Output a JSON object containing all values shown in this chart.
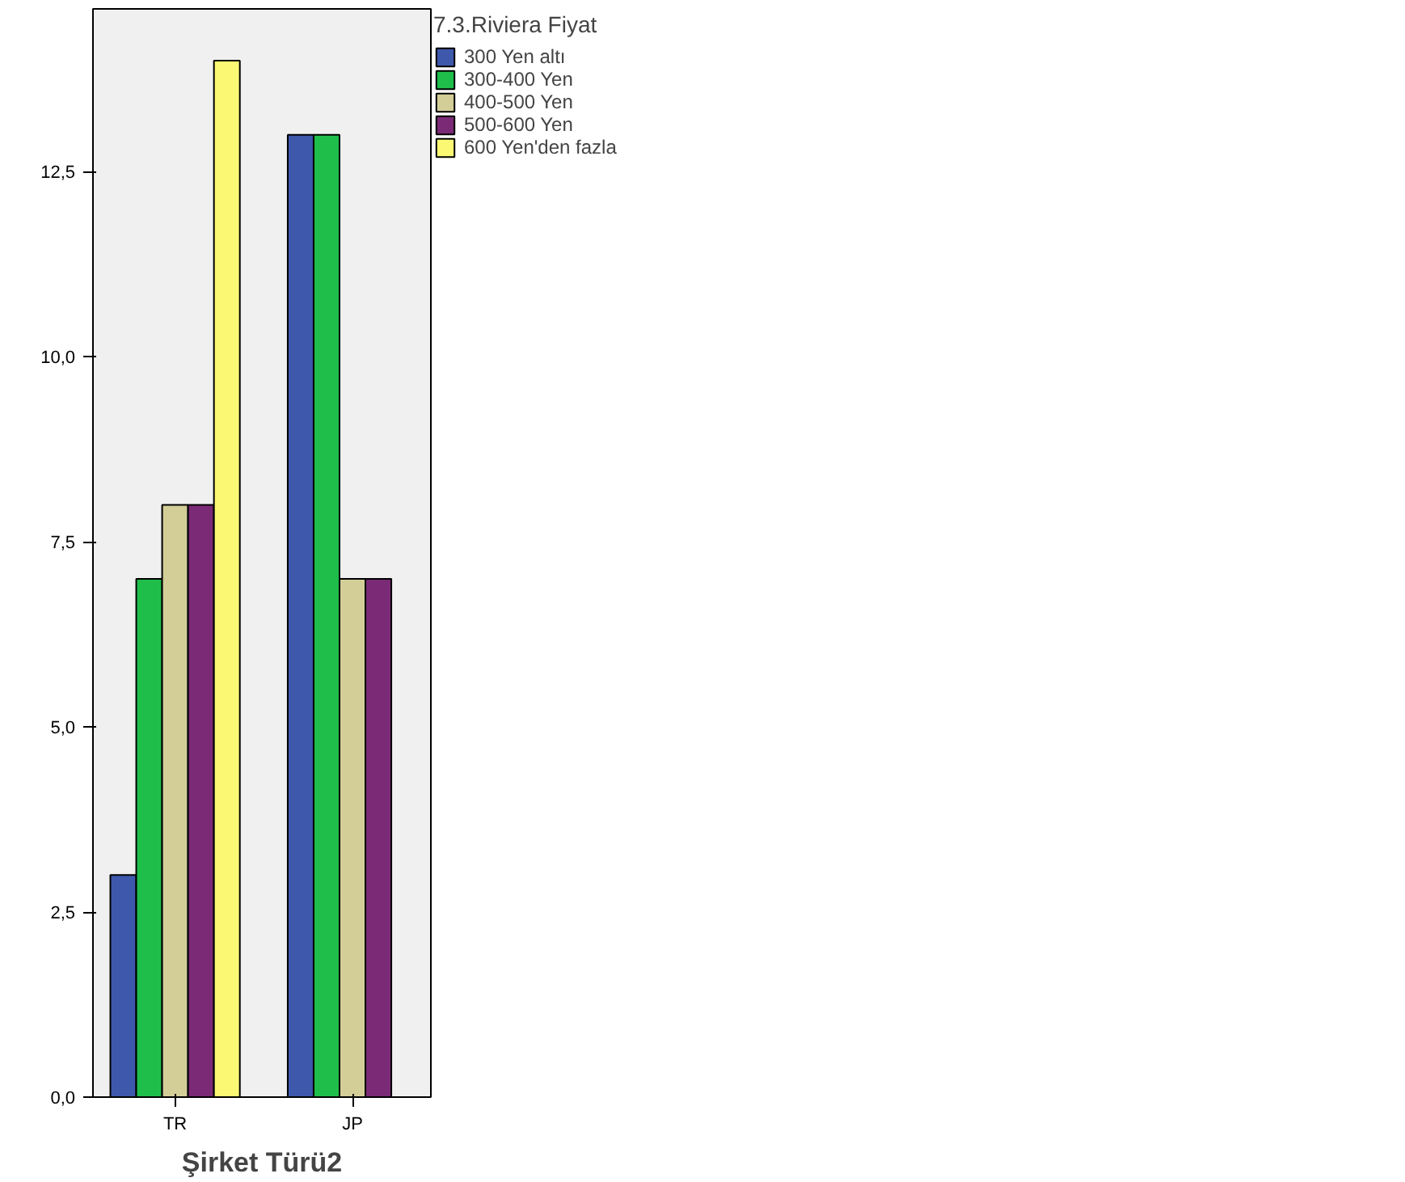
{
  "chart_data": {
    "type": "bar",
    "xlabel": "Şirket Türü2",
    "legend_title": "7.3.Riviera Fiyat",
    "categories": [
      "TR",
      "JP"
    ],
    "series": [
      {
        "name": "300 Yen altı",
        "color": "#3e58ac",
        "values": [
          3,
          13
        ]
      },
      {
        "name": "300-400 Yen",
        "color": "#1fbe4b",
        "values": [
          7,
          13
        ]
      },
      {
        "name": "400-500 Yen",
        "color": "#d3ce97",
        "values": [
          8,
          7
        ]
      },
      {
        "name": "500-600 Yen",
        "color": "#7b2a76",
        "values": [
          8,
          7
        ]
      },
      {
        "name": "600 Yen'den fazla",
        "color": "#fbf873",
        "values": [
          14,
          null
        ]
      }
    ],
    "ylim": [
      0,
      14.7
    ],
    "yticks": [
      {
        "value": 0,
        "label": "0,0"
      },
      {
        "value": 2.5,
        "label": "2,5"
      },
      {
        "value": 5,
        "label": "5,0"
      },
      {
        "value": 7.5,
        "label": "7,5"
      },
      {
        "value": 10,
        "label": "10,0"
      },
      {
        "value": 12.5,
        "label": "12,5"
      }
    ],
    "grid": false,
    "legend": "right"
  }
}
